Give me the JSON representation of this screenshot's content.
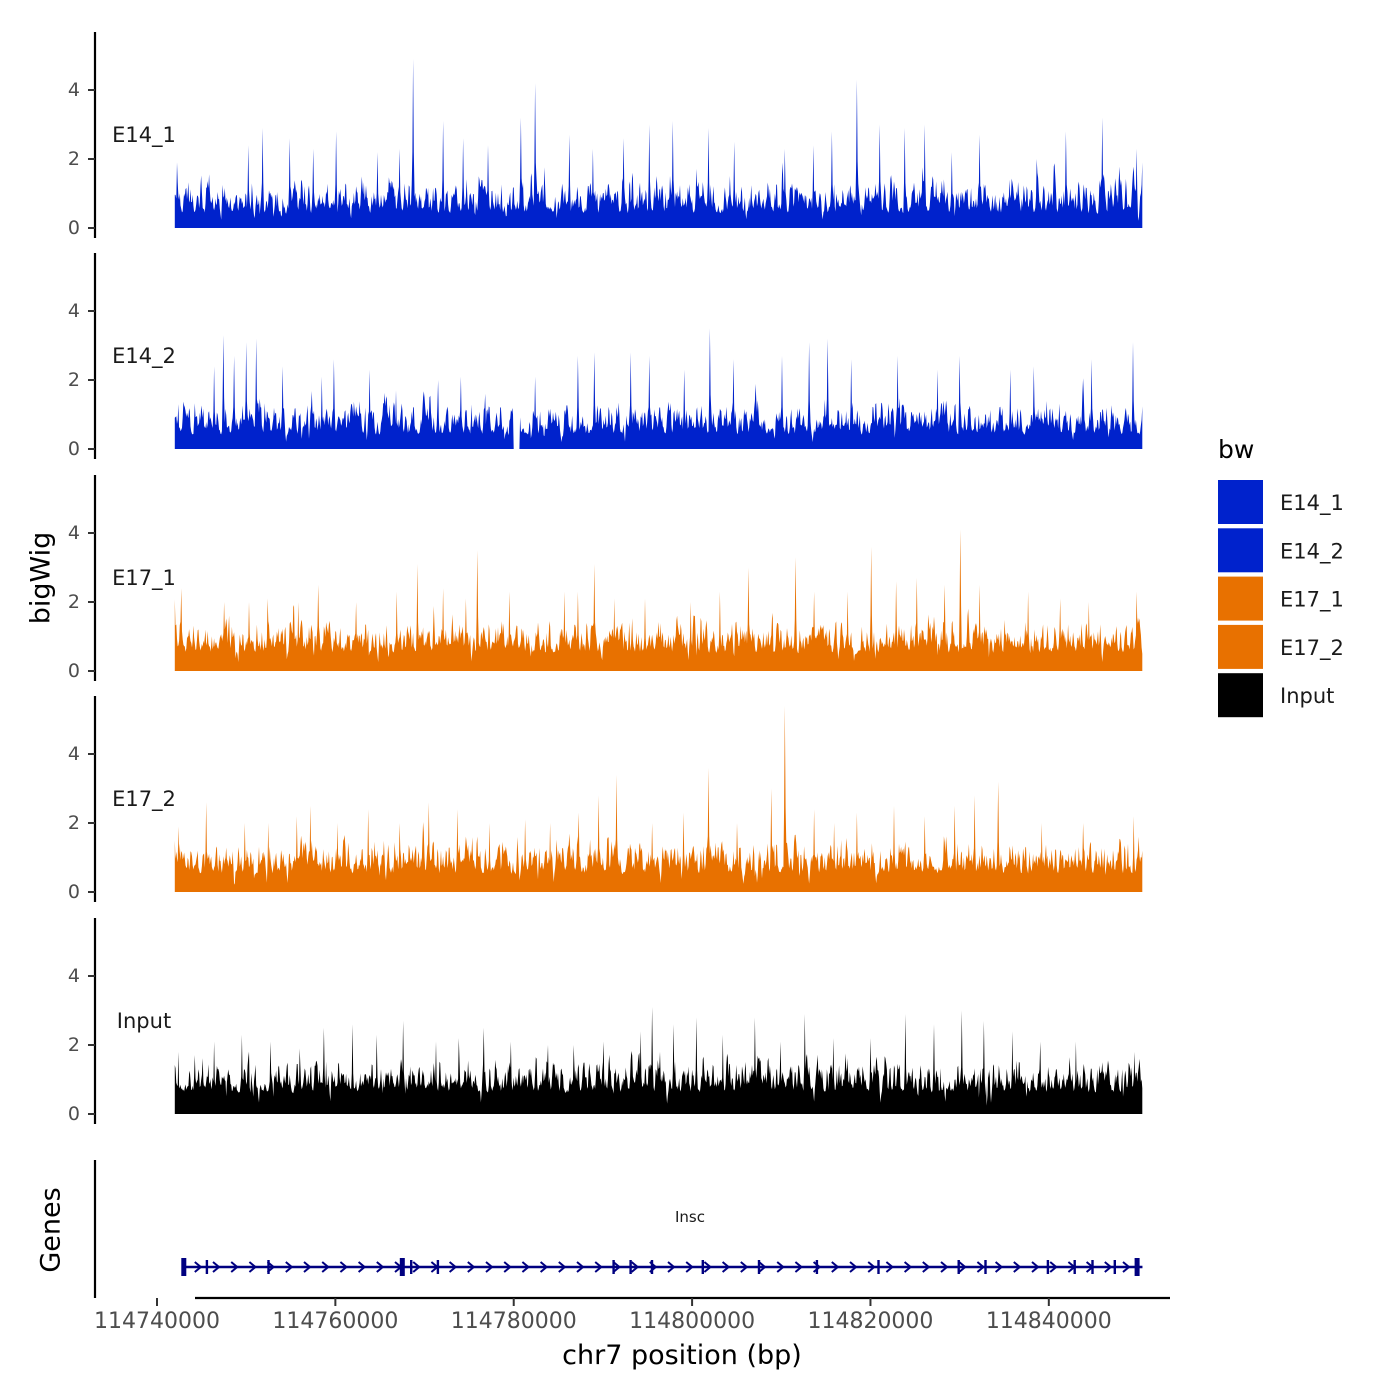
{
  "chart_data": {
    "type": "area",
    "title": "",
    "xlabel": "chr7 position (bp)",
    "ylabel": "bigWig",
    "genes_label": "Genes",
    "xlim": [
      114740000,
      114850000
    ],
    "data_range": [
      114742000,
      114850500
    ],
    "ylim": [
      0,
      5.5
    ],
    "x_ticks": [
      114740000,
      114760000,
      114780000,
      114800000,
      114820000,
      114840000
    ],
    "x_tick_labels": [
      "114740000",
      "114760000",
      "114780000",
      "114800000",
      "114820000",
      "114840000"
    ],
    "y_ticks": [
      0,
      2,
      4
    ],
    "y_tick_labels": [
      "0",
      "2",
      "4"
    ],
    "grid": false,
    "legend": {
      "title": "bw",
      "position": "right"
    },
    "series": [
      {
        "name": "E14_1",
        "color": "#0022CC",
        "baseline": 0.4,
        "peaks": [
          [
            114742200,
            1.9
          ],
          [
            114750200,
            2.4
          ],
          [
            114751800,
            2.9
          ],
          [
            114754900,
            2.6
          ],
          [
            114757500,
            2.3
          ],
          [
            114760100,
            2.8
          ],
          [
            114764700,
            2.2
          ],
          [
            114767200,
            2.3
          ],
          [
            114768700,
            4.9
          ],
          [
            114772100,
            3.1
          ],
          [
            114774300,
            2.6
          ],
          [
            114777100,
            2.4
          ],
          [
            114780800,
            3.2
          ],
          [
            114782400,
            4.2
          ],
          [
            114786200,
            2.7
          ],
          [
            114788900,
            2.3
          ],
          [
            114792300,
            2.6
          ],
          [
            114795200,
            3.0
          ],
          [
            114797800,
            3.1
          ],
          [
            114801800,
            2.9
          ],
          [
            114804700,
            2.5
          ],
          [
            114810400,
            2.3
          ],
          [
            114813600,
            2.4
          ],
          [
            114815700,
            2.8
          ],
          [
            114818500,
            4.3
          ],
          [
            114821000,
            3.0
          ],
          [
            114823800,
            2.9
          ],
          [
            114826100,
            3.0
          ],
          [
            114829100,
            2.2
          ],
          [
            114832200,
            2.7
          ],
          [
            114838600,
            2.0
          ],
          [
            114841900,
            2.8
          ],
          [
            114846000,
            3.2
          ],
          [
            114849800,
            2.3
          ]
        ]
      },
      {
        "name": "E14_2",
        "color": "#0022CC",
        "baseline": 0.4,
        "gaps": [
          [
            114780000,
            114780700
          ]
        ],
        "peaks": [
          [
            114742400,
            1.3
          ],
          [
            114746400,
            2.4
          ],
          [
            114747400,
            3.3
          ],
          [
            114748600,
            2.7
          ],
          [
            114750000,
            3.1
          ],
          [
            114751100,
            3.2
          ],
          [
            114754100,
            2.4
          ],
          [
            114758500,
            2.1
          ],
          [
            114759800,
            2.6
          ],
          [
            114763800,
            2.3
          ],
          [
            114766800,
            1.7
          ],
          [
            114771500,
            2.0
          ],
          [
            114774100,
            2.1
          ],
          [
            114776800,
            1.6
          ],
          [
            114780600,
            2.0
          ],
          [
            114782400,
            2.1
          ],
          [
            114787200,
            2.7
          ],
          [
            114789000,
            2.8
          ],
          [
            114793100,
            2.8
          ],
          [
            114795200,
            2.7
          ],
          [
            114799100,
            2.3
          ],
          [
            114802000,
            3.5
          ],
          [
            114804600,
            2.6
          ],
          [
            114810100,
            2.7
          ],
          [
            114813100,
            3.1
          ],
          [
            114815200,
            3.2
          ],
          [
            114817800,
            2.6
          ],
          [
            114823000,
            2.7
          ],
          [
            114827500,
            2.3
          ],
          [
            114830000,
            2.7
          ],
          [
            114835700,
            2.3
          ],
          [
            114838300,
            2.4
          ],
          [
            114844800,
            2.6
          ],
          [
            114849400,
            3.1
          ]
        ]
      },
      {
        "name": "E17_1",
        "color": "#E87100",
        "baseline": 0.5,
        "peaks": [
          [
            114742700,
            2.4
          ],
          [
            114747500,
            2.0
          ],
          [
            114750300,
            2.0
          ],
          [
            114752400,
            2.1
          ],
          [
            114755800,
            2.0
          ],
          [
            114758100,
            2.5
          ],
          [
            114762300,
            2.0
          ],
          [
            114766900,
            2.3
          ],
          [
            114769200,
            3.1
          ],
          [
            114772100,
            2.4
          ],
          [
            114774600,
            2.1
          ],
          [
            114775900,
            3.5
          ],
          [
            114779500,
            2.3
          ],
          [
            114785700,
            2.3
          ],
          [
            114787200,
            2.3
          ],
          [
            114789000,
            3.1
          ],
          [
            114791300,
            2.1
          ],
          [
            114794700,
            2.1
          ],
          [
            114799800,
            2.0
          ],
          [
            114803100,
            2.3
          ],
          [
            114806300,
            3.0
          ],
          [
            114811600,
            3.3
          ],
          [
            114813700,
            2.3
          ],
          [
            114817400,
            2.3
          ],
          [
            114820100,
            3.6
          ],
          [
            114822900,
            2.6
          ],
          [
            114825200,
            2.7
          ],
          [
            114828300,
            2.5
          ],
          [
            114830100,
            4.1
          ],
          [
            114832200,
            2.5
          ],
          [
            114837700,
            2.3
          ],
          [
            114841300,
            2.1
          ],
          [
            114844500,
            2.0
          ],
          [
            114849800,
            2.3
          ]
        ]
      },
      {
        "name": "E17_2",
        "color": "#E87100",
        "baseline": 0.5,
        "peaks": [
          [
            114742400,
            1.9
          ],
          [
            114745500,
            2.6
          ],
          [
            114749800,
            2.0
          ],
          [
            114752500,
            2.0
          ],
          [
            114755700,
            2.2
          ],
          [
            114757200,
            2.5
          ],
          [
            114760200,
            2.0
          ],
          [
            114763700,
            2.4
          ],
          [
            114767200,
            2.0
          ],
          [
            114770500,
            2.6
          ],
          [
            114773700,
            2.4
          ],
          [
            114777300,
            2.0
          ],
          [
            114781300,
            2.1
          ],
          [
            114784100,
            2.0
          ],
          [
            114787300,
            2.3
          ],
          [
            114789500,
            2.8
          ],
          [
            114791500,
            3.4
          ],
          [
            114795500,
            2.0
          ],
          [
            114799000,
            2.3
          ],
          [
            114801800,
            3.6
          ],
          [
            114805000,
            2.0
          ],
          [
            114808900,
            3.0
          ],
          [
            114810400,
            5.4
          ],
          [
            114813700,
            2.4
          ],
          [
            114815900,
            2.0
          ],
          [
            114818500,
            2.3
          ],
          [
            114822600,
            2.5
          ],
          [
            114826100,
            2.2
          ],
          [
            114829400,
            2.5
          ],
          [
            114831700,
            2.8
          ],
          [
            114834300,
            3.2
          ],
          [
            114839200,
            2.0
          ],
          [
            114843800,
            2.0
          ],
          [
            114849500,
            2.2
          ]
        ]
      },
      {
        "name": "Input",
        "color": "#000000",
        "baseline": 0.6,
        "peaks": [
          [
            114742400,
            1.8
          ],
          [
            114746400,
            2.1
          ],
          [
            114749500,
            2.3
          ],
          [
            114752700,
            2.1
          ],
          [
            114756000,
            1.9
          ],
          [
            114758700,
            2.5
          ],
          [
            114761900,
            2.6
          ],
          [
            114764600,
            2.3
          ],
          [
            114767600,
            2.7
          ],
          [
            114771300,
            2.1
          ],
          [
            114773800,
            2.2
          ],
          [
            114776600,
            2.5
          ],
          [
            114779700,
            2.1
          ],
          [
            114783800,
            2.0
          ],
          [
            114786700,
            2.0
          ],
          [
            114790100,
            2.1
          ],
          [
            114794200,
            2.4
          ],
          [
            114795500,
            3.1
          ],
          [
            114797900,
            2.6
          ],
          [
            114800500,
            2.8
          ],
          [
            114803400,
            2.3
          ],
          [
            114807000,
            2.8
          ],
          [
            114809900,
            2.1
          ],
          [
            114812600,
            2.9
          ],
          [
            114815800,
            2.2
          ],
          [
            114820000,
            2.2
          ],
          [
            114823900,
            2.9
          ],
          [
            114827100,
            2.6
          ],
          [
            114830200,
            3.0
          ],
          [
            114832700,
            2.7
          ],
          [
            114835900,
            2.4
          ],
          [
            114839000,
            2.1
          ],
          [
            114843000,
            2.1
          ],
          [
            114849600,
            1.8
          ]
        ]
      }
    ],
    "gene_track": {
      "gene": "Insc",
      "start": 114743000,
      "end": 114850500,
      "strand": "+",
      "exons": [
        114743000,
        114745600,
        114752500,
        114767500,
        114768500,
        114771500,
        114791200,
        114793100,
        114795500,
        114801200,
        114807500,
        114814000,
        114820900,
        114829900,
        114832900,
        114839900,
        114842900,
        114844900,
        114847400,
        114849900
      ]
    }
  }
}
